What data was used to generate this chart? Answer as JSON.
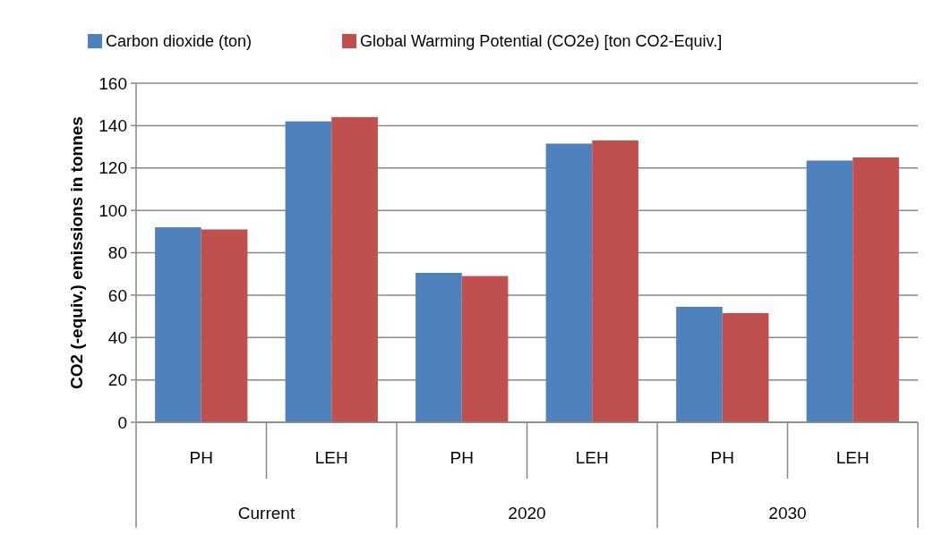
{
  "chart_data": {
    "type": "bar",
    "ylabel": "CO2 (-equiv.) emissions in tonnes",
    "categories": [
      "PH",
      "LEH",
      "PH",
      "LEH",
      "PH",
      "LEH"
    ],
    "annotations": [
      "Current",
      "2020",
      "2030"
    ],
    "series": [
      {
        "name": "Carbon dioxide (ton)",
        "color": "#4f81bd",
        "values": [
          92,
          142,
          70.5,
          131.5,
          54.5,
          123.5
        ]
      },
      {
        "name": "Global Warming Potential (CO2e) [ton CO2-Equiv.]",
        "color": "#c0504d",
        "values": [
          91,
          144,
          69,
          133,
          51.5,
          125
        ]
      }
    ],
    "ylim": [
      0,
      160
    ],
    "yticks": [
      0,
      20,
      40,
      60,
      80,
      100,
      120,
      140,
      160
    ],
    "grid": "y",
    "legend": "top"
  }
}
